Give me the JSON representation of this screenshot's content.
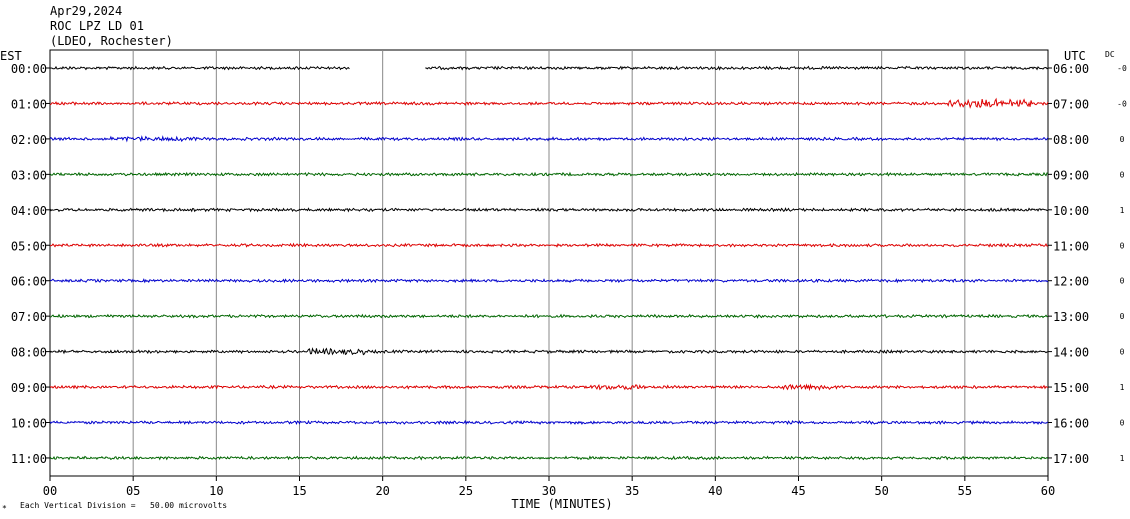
{
  "chart_data": {
    "type": "line",
    "header": {
      "date": "Apr29,2024",
      "station": "ROC LPZ LD 01",
      "network": "(LDEO, Rochester)"
    },
    "left_axis_title": "EST",
    "right_axis_title": "UTC",
    "dc_label": "DC",
    "xlabel": "TIME (MINUTES)",
    "xlim": [
      0,
      60
    ],
    "x_ticks": [
      "00",
      "05",
      "10",
      "15",
      "20",
      "25",
      "30",
      "35",
      "40",
      "45",
      "50",
      "55",
      "60"
    ],
    "grid": true,
    "footnote": "Each Vertical Division =   50.00 microvolts",
    "footnote_mark": "*",
    "colors": [
      "#000000",
      "#dd0000",
      "#0000cc",
      "#006600"
    ],
    "series": [
      {
        "est": "00:00",
        "utc": "06:00",
        "dc": "-0",
        "gaps": [
          [
            18.0,
            22.5
          ]
        ],
        "bursts": []
      },
      {
        "est": "01:00",
        "utc": "07:00",
        "dc": "-0",
        "gaps": [],
        "bursts": [
          [
            54.0,
            59.0,
            3.0
          ]
        ]
      },
      {
        "est": "02:00",
        "utc": "08:00",
        "dc": "0",
        "gaps": [],
        "bursts": [
          [
            3.0,
            9.0,
            1.6
          ]
        ]
      },
      {
        "est": "03:00",
        "utc": "09:00",
        "dc": "0",
        "gaps": [],
        "bursts": []
      },
      {
        "est": "04:00",
        "utc": "10:00",
        "dc": "1",
        "gaps": [],
        "bursts": []
      },
      {
        "est": "05:00",
        "utc": "11:00",
        "dc": "0",
        "gaps": [],
        "bursts": []
      },
      {
        "est": "06:00",
        "utc": "12:00",
        "dc": "0",
        "gaps": [],
        "bursts": []
      },
      {
        "est": "07:00",
        "utc": "13:00",
        "dc": "0",
        "gaps": [],
        "bursts": []
      },
      {
        "est": "08:00",
        "utc": "14:00",
        "dc": "0",
        "gaps": [],
        "bursts": [
          [
            15.5,
            19.0,
            2.2
          ]
        ]
      },
      {
        "est": "09:00",
        "utc": "15:00",
        "dc": "1",
        "gaps": [],
        "bursts": [
          [
            32.5,
            35.5,
            1.8
          ],
          [
            44.0,
            47.0,
            2.0
          ]
        ]
      },
      {
        "est": "10:00",
        "utc": "16:00",
        "dc": "0",
        "gaps": [],
        "bursts": []
      },
      {
        "est": "11:00",
        "utc": "17:00",
        "dc": "1",
        "gaps": [],
        "bursts": []
      }
    ]
  }
}
